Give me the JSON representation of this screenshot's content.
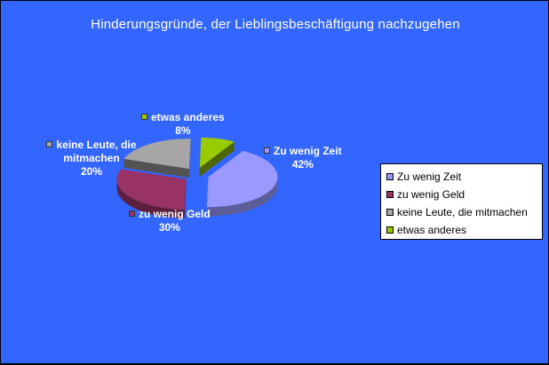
{
  "chart_data": {
    "type": "pie",
    "title": "Hinderungsgründe, der Lieblingsbeschäftigung nachzugehen",
    "categories": [
      "Zu wenig Zeit",
      "zu wenig Geld",
      "keine Leute, die mitmachen",
      "etwas anderes"
    ],
    "values": [
      42,
      30,
      20,
      8
    ],
    "value_labels": [
      "42%",
      "30%",
      "20%",
      "8%"
    ],
    "colors": [
      "#9999ff",
      "#993366",
      "#a6a6a6",
      "#99cc00"
    ],
    "slice_labels": [
      "Zu wenig Zeit",
      "zu wenig Geld",
      "keine Leute, die mitmachen",
      "etwas anderes"
    ],
    "legend": {
      "position": "right",
      "entries": [
        "Zu wenig Zeit",
        "zu wenig Geld",
        "keine Leute, die mitmachen",
        "etwas anderes"
      ]
    },
    "exploded": true,
    "three_d": true
  }
}
